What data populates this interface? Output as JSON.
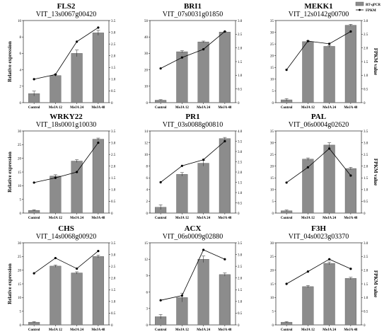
{
  "legend": {
    "bar_label": "RT-qPCR",
    "line_label": "FPKM"
  },
  "axis_labels": {
    "left": "Relative expression",
    "right": "FPKM value"
  },
  "chart_data": [
    {
      "type": "bar",
      "title": "FLS2",
      "subtitle": "VIT_13s0067g00420",
      "categories": [
        "Control",
        "MeJA 12",
        "MeJA 24",
        "MeJA 48"
      ],
      "ylim": [
        0,
        10
      ],
      "yticks": [
        0,
        2,
        4,
        6,
        8,
        10
      ],
      "ylim_right": [
        0,
        3.5
      ],
      "yticks_right": [
        "0",
        "0.5",
        "1.0",
        "1.5",
        "2.0",
        "2.5",
        "3.0",
        "3.5"
      ],
      "ylabel": "Relative expression",
      "ylabel_right": "",
      "series": [
        {
          "name": "RT-qPCR",
          "kind": "bar",
          "values": [
            1.1,
            3.3,
            6.0,
            8.5
          ],
          "errors": [
            0.3,
            0.1,
            0.4,
            0.3
          ]
        },
        {
          "name": "FPKM",
          "kind": "line",
          "values": [
            1.0,
            1.2,
            2.6,
            3.2
          ]
        }
      ]
    },
    {
      "type": "bar",
      "title": "BRI1",
      "subtitle": "VIT_07s0031g01850",
      "categories": [
        "Control",
        "MeJA 12",
        "MeJA 24",
        "MeJA 48"
      ],
      "ylim": [
        0,
        50
      ],
      "yticks": [
        0,
        10,
        20,
        30,
        40,
        50
      ],
      "ylim_right": [
        0,
        3.0
      ],
      "yticks_right": [
        "0",
        "0.5",
        "1.0",
        "1.5",
        "2.0",
        "2.5",
        "3.0"
      ],
      "ylabel": "",
      "ylabel_right": "",
      "series": [
        {
          "name": "RT-qPCR",
          "kind": "bar",
          "values": [
            1.5,
            31,
            37,
            43
          ],
          "errors": [
            0.3,
            0.6,
            0.5,
            0.4
          ]
        },
        {
          "name": "FPKM",
          "kind": "line",
          "values": [
            1.25,
            1.65,
            1.95,
            2.6
          ]
        }
      ]
    },
    {
      "type": "bar",
      "title": "MEKK1",
      "subtitle": "VIT_12s0142g00700",
      "categories": [
        "Control",
        "MeJA 12",
        "MeJA 24",
        "MeJA 48"
      ],
      "ylim": [
        0,
        35
      ],
      "yticks": [
        0,
        5,
        10,
        15,
        20,
        25,
        30,
        35
      ],
      "ylim_right": [
        0,
        3.0
      ],
      "yticks_right": [
        "0",
        "0.5",
        "1.0",
        "1.5",
        "2.0",
        "2.5",
        "3.0"
      ],
      "ylabel": "",
      "ylabel_right": "FPKM value",
      "series": [
        {
          "name": "RT-qPCR",
          "kind": "bar",
          "values": [
            1.2,
            26,
            24,
            33
          ],
          "errors": [
            0.5,
            0.4,
            0.4,
            0.4
          ]
        },
        {
          "name": "FPKM",
          "kind": "line",
          "values": [
            1.2,
            2.25,
            2.15,
            2.6
          ]
        }
      ]
    },
    {
      "type": "bar",
      "title": "WRKY22",
      "subtitle": "VIT_18s0001g10030",
      "categories": [
        "Control",
        "MeJA 12",
        "MeJA 24",
        "MeJA 48"
      ],
      "ylim": [
        0,
        30
      ],
      "yticks": [
        0,
        5,
        10,
        15,
        20,
        25,
        30
      ],
      "ylim_right": [
        0,
        3.5
      ],
      "yticks_right": [
        "0",
        "0.5",
        "1.0",
        "1.5",
        "2.0",
        "2.5",
        "3.0",
        "3.5"
      ],
      "ylabel": "Relative expression",
      "ylabel_right": "",
      "series": [
        {
          "name": "RT-qPCR",
          "kind": "bar",
          "values": [
            1.0,
            13.5,
            19,
            27
          ],
          "errors": [
            0.2,
            0.5,
            0.5,
            0.4
          ]
        },
        {
          "name": "FPKM",
          "kind": "line",
          "values": [
            1.3,
            1.5,
            1.75,
            3.0
          ]
        }
      ]
    },
    {
      "type": "bar",
      "title": "PR1",
      "subtitle": "VIT_03s0088g00810",
      "categories": [
        "Control",
        "MeJA 12",
        "MeJA 24",
        "MeJA 48"
      ],
      "ylim": [
        0,
        14
      ],
      "yticks": [
        0,
        2,
        4,
        6,
        8,
        10,
        12,
        14
      ],
      "ylim_right": [
        0,
        4.0
      ],
      "yticks_right": [
        "0",
        "0.5",
        "1.0",
        "1.5",
        "2.0",
        "2.5",
        "3.0",
        "3.5",
        "4.0"
      ],
      "ylabel": "",
      "ylabel_right": "",
      "series": [
        {
          "name": "RT-qPCR",
          "kind": "bar",
          "values": [
            1.0,
            6.6,
            8.5,
            12.7
          ],
          "errors": [
            0.4,
            0.3,
            0.5,
            0.2
          ]
        },
        {
          "name": "FPKM",
          "kind": "line",
          "values": [
            1.5,
            2.3,
            2.6,
            3.5
          ]
        }
      ]
    },
    {
      "type": "bar",
      "title": "PAL",
      "subtitle": "VIT_06s0004g02620",
      "categories": [
        "Control",
        "MeJA 12",
        "MeJA 24",
        "MeJA 48"
      ],
      "ylim": [
        0,
        35
      ],
      "yticks": [
        0,
        5,
        10,
        15,
        20,
        25,
        30,
        35
      ],
      "ylim_right": [
        0,
        3.5
      ],
      "yticks_right": [
        "0",
        "0.5",
        "1.0",
        "1.5",
        "2.0",
        "2.5",
        "3.0",
        "3.5"
      ],
      "ylabel": "",
      "ylabel_right": "FPKM value",
      "series": [
        {
          "name": "RT-qPCR",
          "kind": "bar",
          "values": [
            1.0,
            23,
            29,
            19
          ],
          "errors": [
            0.3,
            0.5,
            1.0,
            0.5
          ]
        },
        {
          "name": "FPKM",
          "kind": "line",
          "values": [
            1.3,
            1.95,
            2.75,
            1.6
          ]
        }
      ]
    },
    {
      "type": "bar",
      "title": "CHS",
      "subtitle": "VIT_14s0068g00920",
      "categories": [
        "Control",
        "MeJA 12",
        "MeJA 24",
        "MeJA 48"
      ],
      "ylim": [
        0,
        30
      ],
      "yticks": [
        0,
        5,
        10,
        15,
        20,
        25,
        30
      ],
      "ylim_right": [
        0,
        3.5
      ],
      "yticks_right": [
        "0",
        "0.5",
        "1.0",
        "1.5",
        "2.0",
        "2.5",
        "3.0",
        "3.5"
      ],
      "ylabel": "Relative expression",
      "ylabel_right": "",
      "series": [
        {
          "name": "RT-qPCR",
          "kind": "bar",
          "values": [
            1.0,
            21.5,
            19,
            25
          ],
          "errors": [
            0.2,
            0.4,
            0.4,
            0.5
          ]
        },
        {
          "name": "FPKM",
          "kind": "line",
          "values": [
            2.2,
            2.85,
            2.4,
            3.15
          ]
        }
      ]
    },
    {
      "type": "bar",
      "title": "ACX",
      "subtitle": "VIT_06s0009g02880",
      "categories": [
        "Control",
        "MeJA 12",
        "MeJA 24",
        "MeJA 48"
      ],
      "ylim": [
        0,
        15
      ],
      "yticks": [
        0,
        3,
        6,
        9,
        12,
        15
      ],
      "ylim_right": [
        0,
        3.5
      ],
      "yticks_right": [
        "0",
        "0.5",
        "1.0",
        "1.5",
        "2.0",
        "2.5",
        "3.0",
        "3.5"
      ],
      "ylabel": "",
      "ylabel_right": "",
      "series": [
        {
          "name": "RT-qPCR",
          "kind": "bar",
          "values": [
            1.5,
            5.0,
            12.0,
            9.2
          ],
          "errors": [
            0.4,
            0.8,
            0.6,
            0.3
          ]
        },
        {
          "name": "FPKM",
          "kind": "line",
          "values": [
            1.05,
            1.25,
            3.2,
            2.8
          ]
        }
      ]
    },
    {
      "type": "bar",
      "title": "F3H",
      "subtitle": "VIT_04s0023g03370",
      "categories": [
        "Control",
        "MeJA 12",
        "MeJA 24",
        "MeJA 48"
      ],
      "ylim": [
        0,
        30
      ],
      "yticks": [
        0,
        5,
        10,
        15,
        20,
        25,
        30
      ],
      "ylim_right": [
        0,
        3.0
      ],
      "yticks_right": [
        "0",
        "0.5",
        "1.0",
        "1.5",
        "2.0",
        "2.5",
        "3.0"
      ],
      "ylabel": "",
      "ylabel_right": "FPKM value",
      "series": [
        {
          "name": "RT-qPCR",
          "kind": "bar",
          "values": [
            1.0,
            14,
            22.5,
            17
          ],
          "errors": [
            0.2,
            0.4,
            0.5,
            0.4
          ]
        },
        {
          "name": "FPKM",
          "kind": "line",
          "values": [
            1.5,
            1.95,
            2.4,
            2.05
          ]
        }
      ]
    }
  ]
}
